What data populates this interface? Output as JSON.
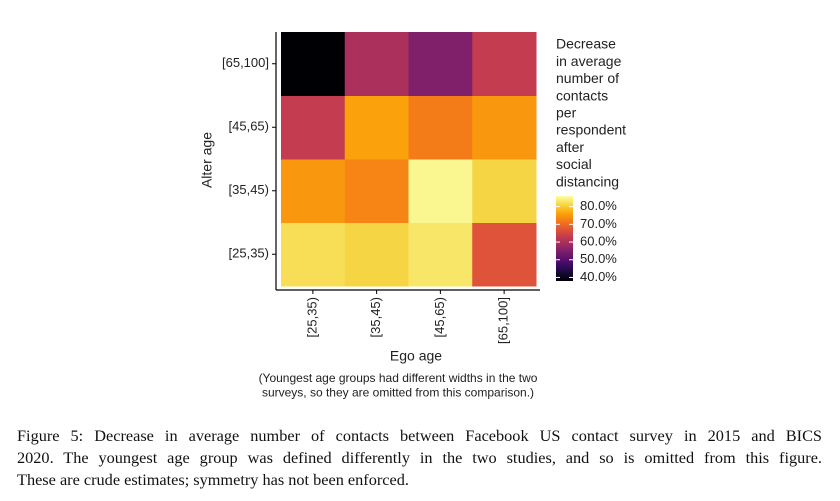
{
  "chart_data": {
    "type": "heatmap",
    "x_label": "Ego age",
    "y_label": "Alter age",
    "x_categories": [
      "[25,35)",
      "[35,45)",
      "[45,65)",
      "[65,100]"
    ],
    "y_categories": [
      "[25,35)",
      "[35,45)",
      "[45,65)",
      "[65,100]"
    ],
    "values": [
      [
        82,
        81,
        83,
        67
      ],
      [
        75,
        73,
        85,
        81
      ],
      [
        63,
        76,
        72,
        75
      ],
      [
        38,
        60,
        55,
        63
      ]
    ],
    "colormap": "inferno",
    "clim": [
      38,
      86
    ],
    "cticks": [
      {
        "value": 40,
        "label": "40.0%"
      },
      {
        "value": 50,
        "label": "50.0%"
      },
      {
        "value": 60,
        "label": "60.0%"
      },
      {
        "value": 70,
        "label": "70.0%"
      },
      {
        "value": 80,
        "label": "80.0%"
      }
    ],
    "legend_title": [
      "Decrease",
      "in average",
      "number of",
      "contacts",
      "per",
      "respondent",
      "after",
      "social",
      "distancing"
    ],
    "note": [
      "(Youngest age groups had different widths in the two",
      "surveys, so they are omitted from this comparison.)"
    ]
  },
  "figure_caption": [
    "Figure 5: Decrease in average number of contacts between Facebook US contact survey in 2015 and BICS",
    "2020. The youngest age group was defined differently in the two studies, and so is omitted from this figure.",
    "These are crude estimates; symmetry has not been enforced."
  ]
}
